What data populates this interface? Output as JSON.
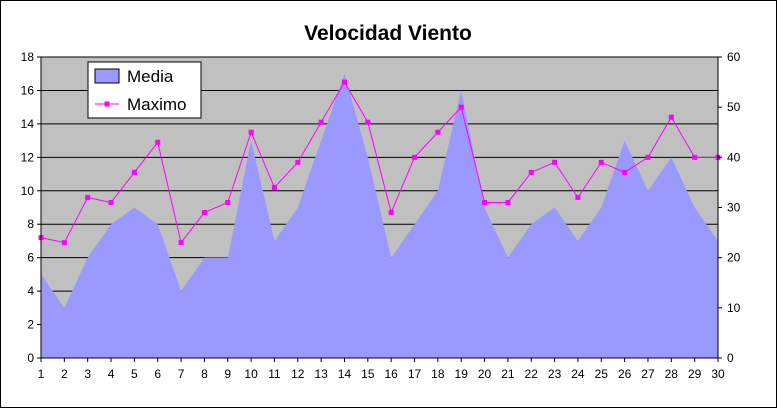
{
  "chart_data": {
    "type": "area",
    "title": "Velocidad Viento",
    "x": [
      1,
      2,
      3,
      4,
      5,
      6,
      7,
      8,
      9,
      10,
      11,
      12,
      13,
      14,
      15,
      16,
      17,
      18,
      19,
      20,
      21,
      22,
      23,
      24,
      25,
      26,
      27,
      28,
      29,
      30
    ],
    "series": [
      {
        "name": "Media",
        "type": "area",
        "axis": "left",
        "color": "#9999ff",
        "values": [
          5,
          3,
          6,
          8,
          9,
          8,
          4,
          6,
          6,
          13,
          7,
          9,
          13,
          17,
          12,
          6,
          8,
          10,
          16,
          9,
          6,
          8,
          9,
          7,
          9,
          13,
          10,
          12,
          9,
          7
        ]
      },
      {
        "name": "Maximo",
        "type": "line",
        "axis": "right",
        "color": "#ff00ff",
        "values": [
          24,
          23,
          32,
          31,
          37,
          43,
          23,
          29,
          31,
          45,
          34,
          39,
          47,
          55,
          47,
          29,
          40,
          45,
          50,
          31,
          31,
          37,
          39,
          32,
          39,
          37,
          40,
          48,
          40,
          40
        ]
      }
    ],
    "ylim_left": [
      0,
      18
    ],
    "yticks_left": [
      0,
      2,
      4,
      6,
      8,
      10,
      12,
      14,
      16,
      18
    ],
    "ylim_right": [
      0,
      60
    ],
    "yticks_right": [
      0,
      10,
      20,
      30,
      40,
      50,
      60
    ],
    "grid": true,
    "legend_position": "top-left",
    "plot_background": "#c0c0c0"
  }
}
